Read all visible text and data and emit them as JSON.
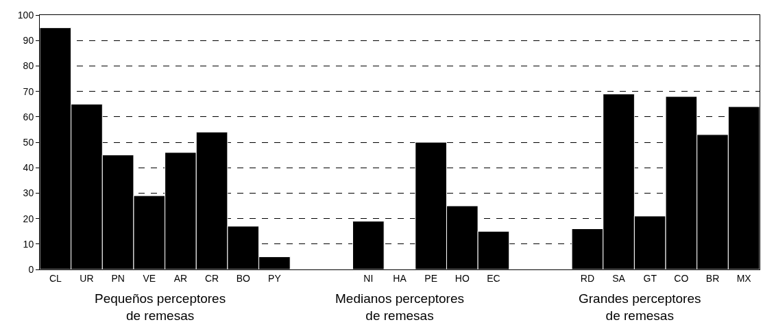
{
  "chart_data": {
    "type": "bar",
    "categories": [
      "CL",
      "UR",
      "PN",
      "VE",
      "AR",
      "CR",
      "BO",
      "PY",
      null,
      null,
      "NI",
      "HA",
      "PE",
      "HO",
      "EC",
      null,
      null,
      "RD",
      "SA",
      "GT",
      "CO",
      "BR",
      "MX"
    ],
    "values": [
      95,
      65,
      45,
      29,
      46,
      54,
      17,
      5,
      null,
      null,
      19,
      null,
      50,
      25,
      15,
      null,
      null,
      16,
      69,
      21,
      68,
      53,
      64
    ],
    "color": "#000000",
    "ylim": [
      0,
      100
    ],
    "yticks": [
      0,
      10,
      20,
      30,
      40,
      50,
      60,
      70,
      80,
      90,
      100
    ],
    "grid": "y",
    "line_style": "dashed",
    "annotations": [
      "Pequeños perceptores\nde remesas",
      "Medianos perceptores\nde remesas",
      "Grandes perceptores\nde remesas"
    ]
  }
}
